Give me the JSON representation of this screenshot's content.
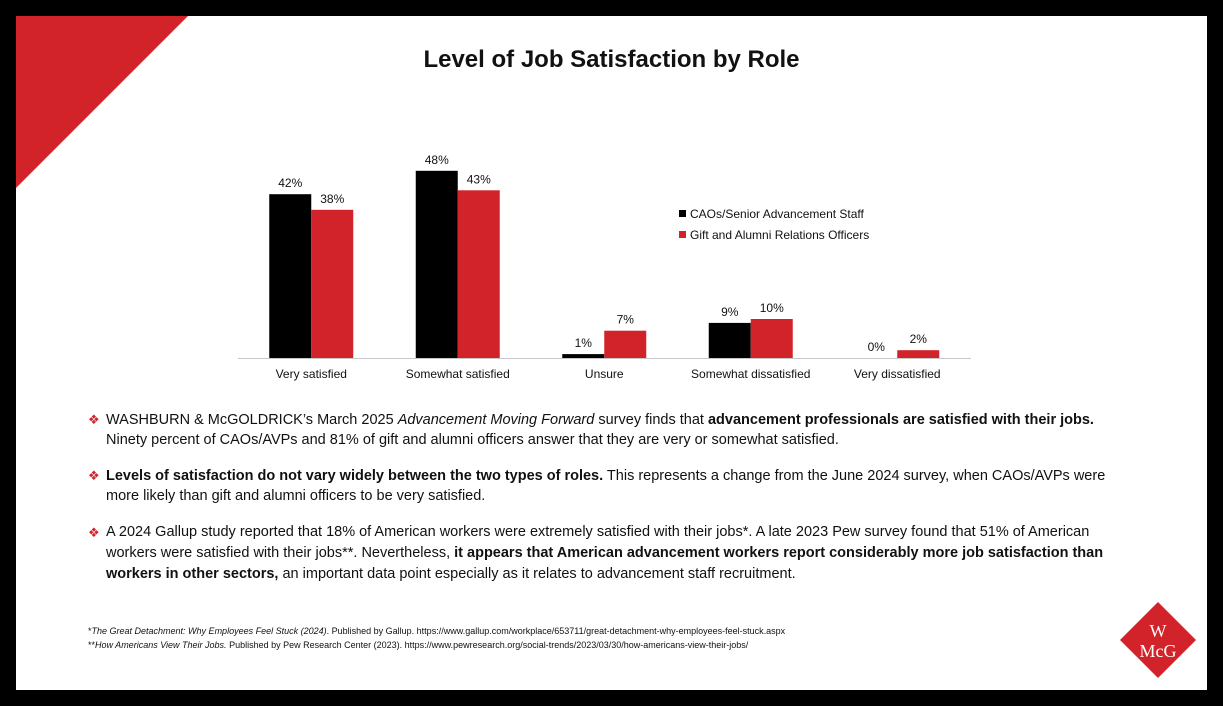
{
  "title": "Level of Job Satisfaction by Role",
  "colors": {
    "cao": "#000000",
    "gift": "#d2232a",
    "accent": "#d2232a"
  },
  "chart_data": {
    "type": "bar",
    "title": "Level of Job Satisfaction by Role",
    "categories": [
      "Very satisfied",
      "Somewhat satisfied",
      "Unsure",
      "Somewhat dissatisfied",
      "Very  dissatisfied"
    ],
    "series": [
      {
        "name": "CAOs/Senior Advancement Staff",
        "values": [
          42,
          48,
          1,
          9,
          0
        ],
        "labels": [
          "42%",
          "48%",
          "1%",
          "9%",
          "0%"
        ],
        "color": "#000000"
      },
      {
        "name": "Gift and Alumni Relations Officers",
        "values": [
          38,
          43,
          7,
          10,
          2
        ],
        "labels": [
          "38%",
          "43%",
          "7%",
          "10%",
          "2%"
        ],
        "color": "#d2232a"
      }
    ],
    "ylim": [
      0,
      50
    ],
    "grid": false,
    "legend": "right",
    "unit": "%"
  },
  "bullets": [
    {
      "parts": [
        {
          "t": "WASHBURN & McGOLDRICK’s March 2025 ",
          "s": "n"
        },
        {
          "t": "Advancement Moving Forward",
          "s": "i"
        },
        {
          "t": " survey finds that ",
          "s": "n"
        },
        {
          "t": "advancement professionals are satisfied with their jobs.",
          "s": "b"
        },
        {
          "t": " Ninety percent of CAOs/AVPs and 81% of gift and alumni officers answer that they are very or somewhat satisfied.",
          "s": "n"
        }
      ]
    },
    {
      "parts": [
        {
          "t": "Levels of satisfaction do not vary widely between the two types of roles.",
          "s": "b"
        },
        {
          "t": " This represents a change from the June 2024 survey, when CAOs/AVPs were more likely than gift and alumni officers to be very satisfied.",
          "s": "n"
        }
      ]
    },
    {
      "parts": [
        {
          "t": "A 2024 Gallup study reported that 18% of American workers were extremely satisfied with their jobs*.  A late 2023 Pew survey found that 51% of American workers were satisfied with their jobs**.  Nevertheless, ",
          "s": "n"
        },
        {
          "t": "it appears that American advancement workers report considerably more job satisfaction than workers in other sectors,",
          "s": "b"
        },
        {
          "t": " an important data point especially as it relates to advancement staff recruitment.",
          "s": "n"
        }
      ]
    }
  ],
  "footnotes": [
    {
      "parts": [
        {
          "t": "*",
          "s": "n"
        },
        {
          "t": "The Great Detachment: Why Employees Feel Stuck (2024)",
          "s": "i"
        },
        {
          "t": ". Published by Gallup. https://www.gallup.com/workplace/653711/great-detachment-why-employees-feel-stuck.aspx",
          "s": "n"
        }
      ]
    },
    {
      "parts": [
        {
          "t": "**",
          "s": "n"
        },
        {
          "t": "How Americans View Their Jobs.",
          "s": "i"
        },
        {
          "t": " Published by Pew Research Center (2023). https://www.pewresearch.org/social-trends/2023/03/30/how-americans-view-their-jobs/",
          "s": "n"
        }
      ]
    }
  ],
  "logo": {
    "top": "W",
    "bottom": "McG"
  }
}
